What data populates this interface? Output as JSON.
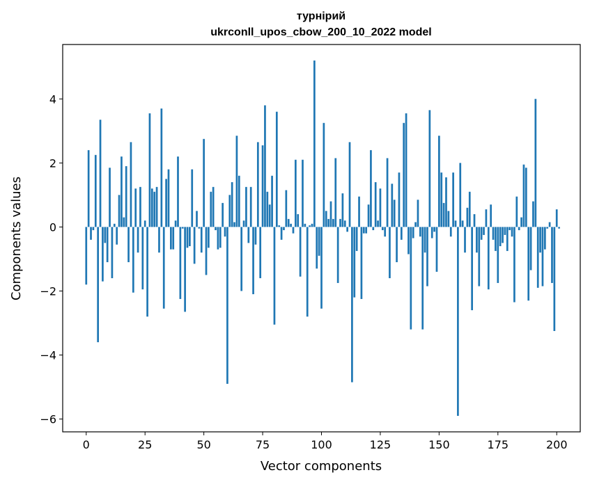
{
  "chart_data": {
    "type": "bar",
    "title": "турнірий",
    "subtitle": "ukrconll_upos_cbow_200_10_2022 model",
    "xlabel": "Vector components",
    "ylabel": "Components values",
    "xlim": [
      -10,
      210
    ],
    "ylim": [
      -6.4,
      5.7
    ],
    "xticks": [
      0,
      25,
      50,
      75,
      100,
      125,
      150,
      175,
      200
    ],
    "xtick_labels": [
      "0",
      "25",
      "50",
      "75",
      "100",
      "125",
      "150",
      "175",
      "200"
    ],
    "yticks": [
      -6,
      -4,
      -2,
      0,
      2,
      4
    ],
    "ytick_labels": [
      "−6",
      "−4",
      "−2",
      "0",
      "2",
      "4"
    ],
    "grid": false,
    "bar_color": "#1f77b4",
    "values": [
      -1.8,
      2.4,
      -0.4,
      -0.1,
      2.25,
      -3.6,
      3.35,
      -1.7,
      -0.5,
      -1.1,
      1.85,
      -1.6,
      0.1,
      -0.55,
      1.0,
      2.2,
      0.3,
      1.9,
      -1.1,
      2.65,
      -2.05,
      1.2,
      -0.8,
      1.25,
      -1.95,
      0.2,
      -2.8,
      3.55,
      1.2,
      1.1,
      1.25,
      -0.8,
      3.7,
      -2.55,
      1.5,
      1.8,
      -0.7,
      -0.7,
      0.2,
      2.2,
      -2.25,
      -0.05,
      -2.65,
      -0.65,
      -0.6,
      1.8,
      -1.15,
      0.5,
      -0.05,
      -0.8,
      2.75,
      -1.5,
      -0.65,
      1.1,
      1.25,
      -0.1,
      -0.7,
      -0.65,
      0.75,
      -0.3,
      -4.9,
      1.0,
      1.4,
      0.15,
      2.85,
      1.6,
      -2.0,
      0.2,
      1.25,
      -0.5,
      1.25,
      -2.1,
      -0.55,
      2.65,
      -1.6,
      2.55,
      3.8,
      1.1,
      0.7,
      1.6,
      -3.05,
      3.6,
      0.05,
      -0.4,
      -0.1,
      1.15,
      0.25,
      0.1,
      -0.2,
      2.1,
      0.4,
      -1.55,
      2.1,
      0.1,
      -2.8,
      0.05,
      0.1,
      5.2,
      -1.3,
      -0.9,
      -2.55,
      3.25,
      0.5,
      0.25,
      0.8,
      0.25,
      2.15,
      -1.75,
      0.25,
      1.05,
      0.2,
      -0.15,
      2.65,
      -4.85,
      -2.2,
      -0.75,
      0.95,
      -2.25,
      -0.2,
      -0.2,
      0.7,
      2.4,
      -0.1,
      1.4,
      0.2,
      1.2,
      -0.1,
      -0.3,
      2.15,
      -1.6,
      1.35,
      0.85,
      -1.1,
      1.7,
      -0.4,
      3.25,
      3.55,
      -0.85,
      -3.2,
      -0.35,
      0.15,
      0.85,
      -0.3,
      -3.2,
      -0.8,
      -1.85,
      3.65,
      -0.35,
      -0.15,
      -1.4,
      2.85,
      1.7,
      0.75,
      1.55,
      0.5,
      -0.3,
      1.7,
      0.2,
      -5.9,
      2.0,
      0.2,
      -0.8,
      0.6,
      1.1,
      -2.6,
      0.4,
      -0.8,
      -1.85,
      -0.4,
      -0.25,
      0.55,
      -1.95,
      0.7,
      -0.4,
      -0.75,
      -1.75,
      -0.6,
      -0.5,
      -0.25,
      -0.75,
      -0.1,
      -0.3,
      -2.35,
      0.95,
      -0.1,
      0.3,
      1.95,
      1.85,
      -2.3,
      -1.35,
      0.8,
      4.0,
      -1.9,
      -0.8,
      -1.85,
      -0.7,
      -0.05,
      0.15,
      -1.75,
      -3.25,
      0.55,
      -0.05
    ]
  }
}
